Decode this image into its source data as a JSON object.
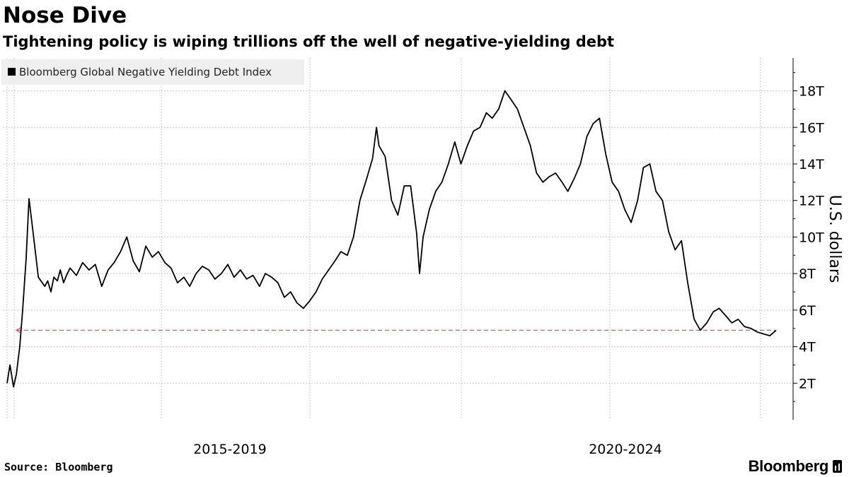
{
  "chart_data": {
    "type": "line",
    "title": "Nose Dive",
    "subtitle": "Tightening policy is wiping trillions off the well of negative-yielding debt",
    "ylabel": "U.S. dollars",
    "y_unit_suffix": "T",
    "ylim": [
      0,
      19.8
    ],
    "y_ticks": [
      2,
      4,
      6,
      8,
      10,
      12,
      14,
      16,
      18
    ],
    "x_period_labels": [
      "2015-2019",
      "2020-2024"
    ],
    "legend": {
      "position": "top-left"
    },
    "grid": true,
    "reference_line": {
      "value": 4.9,
      "style": "dashed",
      "color": "#e8434f"
    },
    "series": [
      {
        "name": "Bloomberg Global Negative Yielding Debt Index",
        "color": "#000000",
        "x": [
          "2014-10-01",
          "2014-10-15",
          "2014-11-01",
          "2014-11-15",
          "2014-12-01",
          "2014-12-15",
          "2015-01-01",
          "2015-01-15",
          "2015-02-01",
          "2015-03-01",
          "2015-04-01",
          "2015-04-15",
          "2015-05-01",
          "2015-05-15",
          "2015-06-01",
          "2015-06-15",
          "2015-07-01",
          "2015-07-15",
          "2015-08-01",
          "2015-09-01",
          "2015-10-01",
          "2015-11-01",
          "2015-12-01",
          "2016-01-01",
          "2016-02-01",
          "2016-03-01",
          "2016-04-01",
          "2016-05-01",
          "2016-06-01",
          "2016-07-01",
          "2016-08-01",
          "2016-09-01",
          "2016-10-01",
          "2016-11-01",
          "2016-12-01",
          "2017-01-01",
          "2017-02-01",
          "2017-03-01",
          "2017-04-01",
          "2017-05-01",
          "2017-06-01",
          "2017-07-01",
          "2017-08-01",
          "2017-09-01",
          "2017-10-01",
          "2017-11-01",
          "2017-12-01",
          "2018-01-01",
          "2018-02-01",
          "2018-03-01",
          "2018-04-01",
          "2018-05-01",
          "2018-06-01",
          "2018-07-01",
          "2018-08-01",
          "2018-09-01",
          "2018-10-01",
          "2018-11-01",
          "2018-12-01",
          "2019-01-01",
          "2019-02-01",
          "2019-03-01",
          "2019-04-01",
          "2019-05-01",
          "2019-06-01",
          "2019-07-01",
          "2019-08-01",
          "2019-08-20",
          "2019-09-01",
          "2019-10-01",
          "2019-11-01",
          "2019-12-01",
          "2020-01-01",
          "2020-02-01",
          "2020-03-01",
          "2020-03-15",
          "2020-04-01",
          "2020-05-01",
          "2020-06-01",
          "2020-07-01",
          "2020-08-01",
          "2020-09-01",
          "2020-10-01",
          "2020-11-01",
          "2020-12-01",
          "2021-01-01",
          "2021-02-01",
          "2021-03-01",
          "2021-04-01",
          "2021-05-01",
          "2021-06-01",
          "2021-07-01",
          "2021-08-01",
          "2021-09-01",
          "2021-10-01",
          "2021-11-01",
          "2021-12-01",
          "2022-01-01",
          "2022-02-01",
          "2022-03-01",
          "2022-04-01",
          "2022-05-01",
          "2022-06-01",
          "2022-07-01",
          "2022-08-01",
          "2022-09-01",
          "2022-10-01",
          "2022-11-01",
          "2022-12-01",
          "2023-01-01",
          "2023-02-01",
          "2023-03-01",
          "2023-04-01",
          "2023-05-01",
          "2023-06-01",
          "2023-07-01",
          "2023-08-01",
          "2023-09-01",
          "2023-10-01",
          "2023-11-01",
          "2023-12-01",
          "2024-01-01",
          "2024-02-01",
          "2024-03-01",
          "2024-04-01",
          "2024-05-01",
          "2024-06-01",
          "2024-07-01",
          "2024-08-01",
          "2024-09-01",
          "2024-10-01",
          "2024-11-01",
          "2024-12-01"
        ],
        "values": [
          2.0,
          3.0,
          1.8,
          2.5,
          4.0,
          6.0,
          8.8,
          12.1,
          10.5,
          7.8,
          7.3,
          7.6,
          7.0,
          7.8,
          7.6,
          8.2,
          7.5,
          7.9,
          8.3,
          7.9,
          8.6,
          8.2,
          8.5,
          7.3,
          8.2,
          8.6,
          9.2,
          10.0,
          8.7,
          8.1,
          9.5,
          8.9,
          9.2,
          8.6,
          8.3,
          7.5,
          7.8,
          7.3,
          8.0,
          8.4,
          8.2,
          7.7,
          8.0,
          8.5,
          7.8,
          8.2,
          7.7,
          7.9,
          7.3,
          8.0,
          7.8,
          7.5,
          6.7,
          7.0,
          6.4,
          6.1,
          6.5,
          7.0,
          7.7,
          8.2,
          8.7,
          9.2,
          9.0,
          10.0,
          12.0,
          13.1,
          14.3,
          16.0,
          15.0,
          14.4,
          12.0,
          11.2,
          12.8,
          12.8,
          10.2,
          8.0,
          10.0,
          11.5,
          12.5,
          13.0,
          14.0,
          15.2,
          14.0,
          15.0,
          15.8,
          16.0,
          16.8,
          16.5,
          17.0,
          18.0,
          17.5,
          17.0,
          16.0,
          15.0,
          13.5,
          13.0,
          13.3,
          13.5,
          13.0,
          12.5,
          13.2,
          14.0,
          15.5,
          16.2,
          16.5,
          14.5,
          13.0,
          12.5,
          11.5,
          10.8,
          12.0,
          13.8,
          14.0,
          12.5,
          12.0,
          10.3,
          9.3,
          9.8,
          7.5,
          5.5,
          4.9,
          5.3,
          5.9,
          6.1,
          5.7,
          5.3,
          5.5,
          5.1,
          5.0,
          4.8,
          4.7,
          4.6,
          4.9
        ]
      }
    ]
  },
  "source": {
    "label": "Source:",
    "value": "Bloomberg"
  },
  "brand": "Bloomberg"
}
